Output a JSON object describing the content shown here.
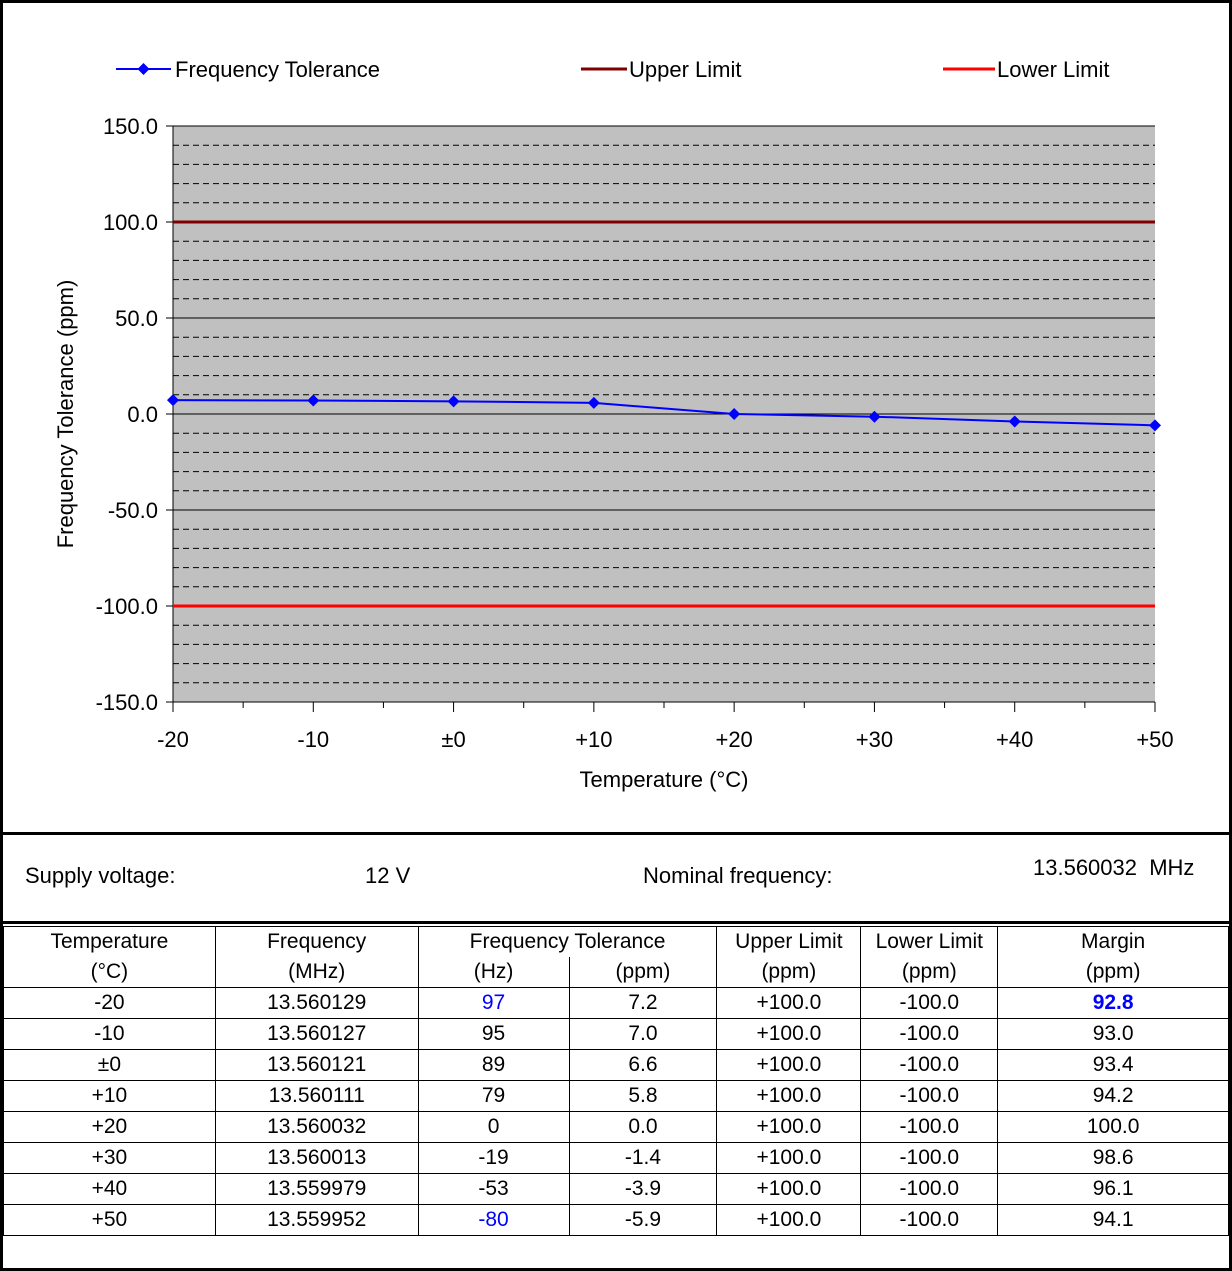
{
  "chart_data": {
    "type": "line",
    "title": "",
    "xlabel": "Temperature (°C)",
    "ylabel": "Frequency Tolerance (ppm)",
    "x": [
      -20,
      -10,
      0,
      10,
      20,
      30,
      40,
      50
    ],
    "x_tick_labels": [
      "-20",
      "-10",
      "±0",
      "+10",
      "+20",
      "+30",
      "+40",
      "+50"
    ],
    "xlim": [
      -20,
      50
    ],
    "ylim": [
      -150,
      150
    ],
    "y_tick_labels": [
      "150.0",
      "100.0",
      "50.0",
      "0.0",
      "-50.0",
      "-100.0",
      "-150.0"
    ],
    "y_ticks": [
      150,
      100,
      50,
      0,
      -50,
      -100,
      -150
    ],
    "grid": true,
    "legend_position": "top",
    "series": [
      {
        "name": "Frequency Tolerance",
        "values": [
          7.2,
          7.0,
          6.6,
          5.8,
          0.0,
          -1.4,
          -3.9,
          -5.9
        ],
        "color": "#0000ff",
        "marker": "diamond"
      },
      {
        "name": "Upper Limit",
        "values": [
          100,
          100,
          100,
          100,
          100,
          100,
          100,
          100
        ],
        "color": "#800000"
      },
      {
        "name": "Lower Limit",
        "values": [
          -100,
          -100,
          -100,
          -100,
          -100,
          -100,
          -100,
          -100
        ],
        "color": "#ff0000"
      }
    ],
    "plot_background": "#c0c0c0"
  },
  "info": {
    "supply_label": "Supply voltage:",
    "supply_value": "12 V",
    "nominal_label": "Nominal frequency:",
    "nominal_value": "13.560032  MHz"
  },
  "table": {
    "header1": [
      "Temperature",
      "Frequency",
      "Frequency Tolerance",
      "Upper Limit",
      "Lower Limit",
      "Margin"
    ],
    "header2": [
      "(°C)",
      "(MHz)",
      "(Hz)",
      "(ppm)",
      "(ppm)",
      "(ppm)",
      "(ppm)"
    ],
    "rows": [
      [
        "-20",
        "13.560129",
        "97",
        "7.2",
        "+100.0",
        "-100.0",
        "92.8"
      ],
      [
        "-10",
        "13.560127",
        "95",
        "7.0",
        "+100.0",
        "-100.0",
        "93.0"
      ],
      [
        "±0",
        "13.560121",
        "89",
        "6.6",
        "+100.0",
        "-100.0",
        "93.4"
      ],
      [
        "+10",
        "13.560111",
        "79",
        "5.8",
        "+100.0",
        "-100.0",
        "94.2"
      ],
      [
        "+20",
        "13.560032",
        "0",
        "0.0",
        "+100.0",
        "-100.0",
        "100.0"
      ],
      [
        "+30",
        "13.560013",
        "-19",
        "-1.4",
        "+100.0",
        "-100.0",
        "98.6"
      ],
      [
        "+40",
        "13.559979",
        "-53",
        "-3.9",
        "+100.0",
        "-100.0",
        "96.1"
      ],
      [
        "+50",
        "13.559952",
        "-80",
        "-5.9",
        "+100.0",
        "-100.0",
        "94.1"
      ]
    ]
  },
  "colors": {
    "highlight": "#0000ff",
    "plot_background": "#c0c0c0",
    "upper_limit": "#800000",
    "lower_limit": "#ff0000",
    "series": "#0000ff"
  }
}
